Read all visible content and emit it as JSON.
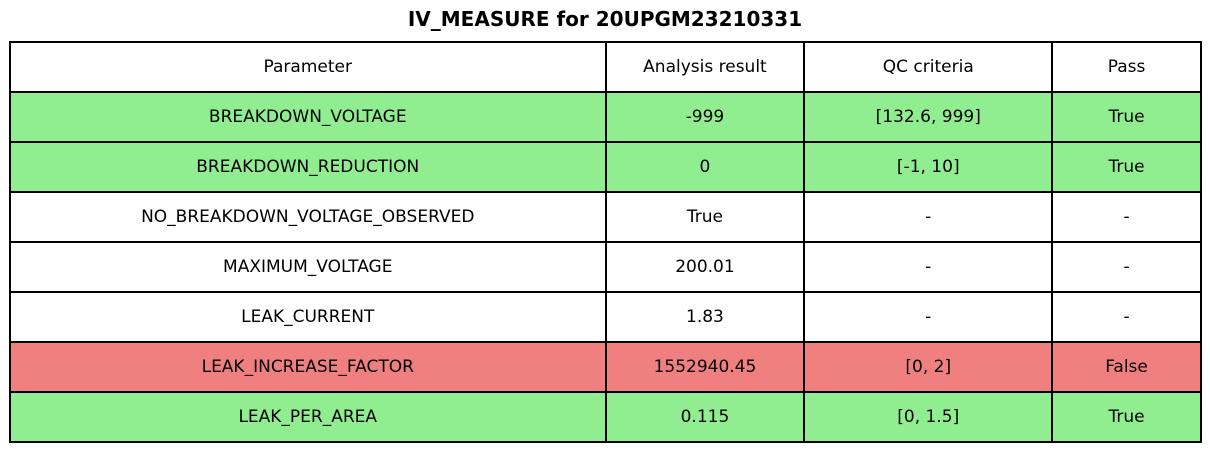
{
  "title": "IV_MEASURE for 20UPGM23210331",
  "chart_data": {
    "type": "table",
    "title": "IV_MEASURE for 20UPGM23210331",
    "columns": [
      "Parameter",
      "Analysis result",
      "QC criteria",
      "Pass"
    ],
    "rows": [
      {
        "cells": [
          "BREAKDOWN_VOLTAGE",
          "-999",
          "[132.6, 999]",
          "True"
        ],
        "status": "pass"
      },
      {
        "cells": [
          "BREAKDOWN_REDUCTION",
          "0",
          "[-1, 10]",
          "True"
        ],
        "status": "pass"
      },
      {
        "cells": [
          "NO_BREAKDOWN_VOLTAGE_OBSERVED",
          "True",
          "-",
          "-"
        ],
        "status": "neutral"
      },
      {
        "cells": [
          "MAXIMUM_VOLTAGE",
          "200.01",
          "-",
          "-"
        ],
        "status": "neutral"
      },
      {
        "cells": [
          "LEAK_CURRENT",
          "1.83",
          "-",
          "-"
        ],
        "status": "neutral"
      },
      {
        "cells": [
          "LEAK_INCREASE_FACTOR",
          "1552940.45",
          "[0, 2]",
          "False"
        ],
        "status": "fail"
      },
      {
        "cells": [
          "LEAK_PER_AREA",
          "0.115",
          "[0, 1.5]",
          "True"
        ],
        "status": "pass"
      }
    ],
    "colors": {
      "pass_bg": "#90EE90",
      "fail_bg": "#F08080",
      "neutral_bg": "#FFFFFF",
      "border": "#000000",
      "text": "#000000"
    },
    "legend_position": "none",
    "grid": "all-cell-borders"
  }
}
